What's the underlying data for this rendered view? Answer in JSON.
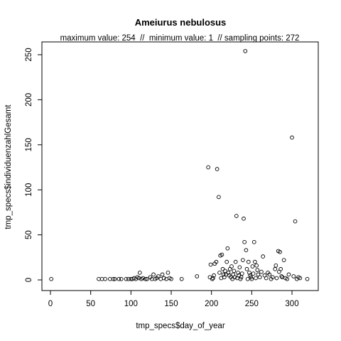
{
  "chart_data": {
    "type": "scatter",
    "title": "Ameiurus nebulosus",
    "subtitle": "maximum value: 254  //  minimum value: 1  // sampling points: 272",
    "xlabel": "tmp_specs$day_of_year",
    "ylabel": "tmp_specs$individuenzahlGesamt",
    "xlim": [
      0,
      330
    ],
    "ylim": [
      0,
      260
    ],
    "x_ticks": [
      0,
      50,
      100,
      150,
      200,
      250,
      300
    ],
    "y_ticks": [
      0,
      50,
      100,
      150,
      200,
      250
    ],
    "grid": false,
    "marker": "open-circle",
    "points": [
      [
        1,
        1
      ],
      [
        60,
        1
      ],
      [
        64,
        1
      ],
      [
        68,
        1
      ],
      [
        74,
        1
      ],
      [
        78,
        1
      ],
      [
        80,
        1
      ],
      [
        85,
        1
      ],
      [
        88,
        1
      ],
      [
        94,
        1
      ],
      [
        97,
        1
      ],
      [
        100,
        1
      ],
      [
        102,
        1
      ],
      [
        104,
        2
      ],
      [
        106,
        1
      ],
      [
        108,
        3
      ],
      [
        110,
        2
      ],
      [
        111,
        8
      ],
      [
        113,
        1
      ],
      [
        115,
        2
      ],
      [
        118,
        1
      ],
      [
        120,
        1
      ],
      [
        124,
        3
      ],
      [
        126,
        1
      ],
      [
        128,
        6
      ],
      [
        130,
        1
      ],
      [
        132,
        2
      ],
      [
        134,
        4
      ],
      [
        137,
        1
      ],
      [
        139,
        6
      ],
      [
        141,
        2
      ],
      [
        144,
        1
      ],
      [
        146,
        8
      ],
      [
        148,
        2
      ],
      [
        150,
        1
      ],
      [
        163,
        1
      ],
      [
        182,
        4
      ],
      [
        196,
        125
      ],
      [
        198,
        3
      ],
      [
        199,
        17
      ],
      [
        201,
        1
      ],
      [
        202,
        2
      ],
      [
        203,
        5
      ],
      [
        204,
        18
      ],
      [
        206,
        20
      ],
      [
        207,
        123
      ],
      [
        209,
        92
      ],
      [
        210,
        8
      ],
      [
        211,
        27
      ],
      [
        212,
        2
      ],
      [
        213,
        28
      ],
      [
        214,
        12
      ],
      [
        215,
        6
      ],
      [
        216,
        3
      ],
      [
        217,
        10
      ],
      [
        218,
        6
      ],
      [
        219,
        20
      ],
      [
        220,
        35
      ],
      [
        221,
        8
      ],
      [
        222,
        5
      ],
      [
        223,
        12
      ],
      [
        224,
        3
      ],
      [
        225,
        15
      ],
      [
        226,
        1
      ],
      [
        227,
        6
      ],
      [
        228,
        10
      ],
      [
        229,
        3
      ],
      [
        230,
        20
      ],
      [
        231,
        71
      ],
      [
        232,
        2
      ],
      [
        233,
        8
      ],
      [
        234,
        5
      ],
      [
        235,
        14
      ],
      [
        236,
        1
      ],
      [
        237,
        3
      ],
      [
        238,
        7
      ],
      [
        239,
        22
      ],
      [
        240,
        68
      ],
      [
        241,
        42
      ],
      [
        242,
        254
      ],
      [
        243,
        33
      ],
      [
        244,
        12
      ],
      [
        245,
        1
      ],
      [
        246,
        20
      ],
      [
        247,
        8
      ],
      [
        248,
        5
      ],
      [
        249,
        3
      ],
      [
        250,
        1
      ],
      [
        251,
        15
      ],
      [
        252,
        7
      ],
      [
        253,
        42
      ],
      [
        254,
        20
      ],
      [
        255,
        2
      ],
      [
        256,
        16
      ],
      [
        257,
        11
      ],
      [
        258,
        6
      ],
      [
        260,
        3
      ],
      [
        262,
        9
      ],
      [
        264,
        26
      ],
      [
        266,
        5
      ],
      [
        268,
        2
      ],
      [
        270,
        8
      ],
      [
        272,
        6
      ],
      [
        274,
        1
      ],
      [
        276,
        3
      ],
      [
        279,
        12
      ],
      [
        280,
        16
      ],
      [
        281,
        2
      ],
      [
        283,
        32
      ],
      [
        284,
        9
      ],
      [
        285,
        31
      ],
      [
        286,
        12
      ],
      [
        287,
        4
      ],
      [
        288,
        3
      ],
      [
        290,
        22
      ],
      [
        292,
        2
      ],
      [
        294,
        1
      ],
      [
        296,
        6
      ],
      [
        300,
        158
      ],
      [
        302,
        4
      ],
      [
        304,
        65
      ],
      [
        306,
        1
      ],
      [
        308,
        3
      ],
      [
        310,
        2
      ],
      [
        319,
        1
      ]
    ]
  }
}
